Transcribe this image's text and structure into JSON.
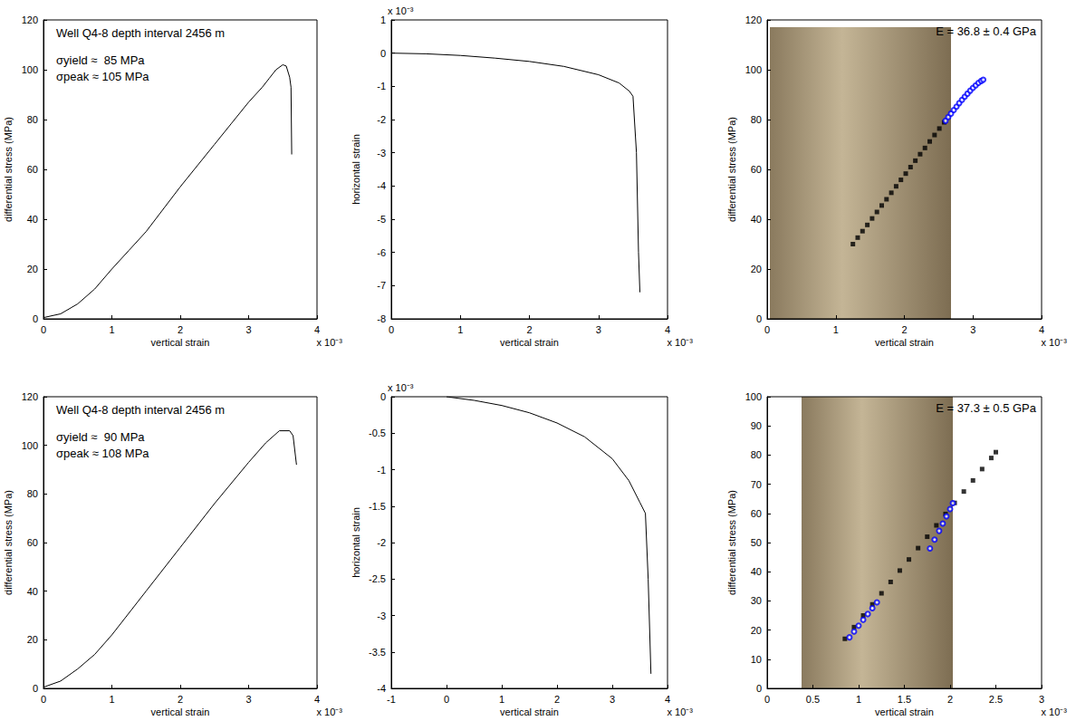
{
  "chart_data": [
    {
      "type": "line",
      "annotations": [
        "Well Q4-8 depth interval 2456 m",
        "σyield ≈  85 MPa",
        "σpeak ≈ 105 MPa"
      ],
      "xlabel": "vertical strain",
      "ylabel": "differential stress (MPa)",
      "x_exponent": "x 10⁻³",
      "x": [
        0,
        0.25,
        0.5,
        0.75,
        1,
        1.25,
        1.5,
        1.75,
        2,
        2.25,
        2.5,
        2.75,
        3,
        3.2,
        3.3,
        3.4,
        3.5,
        3.55,
        3.6,
        3.62,
        3.63
      ],
      "values": [
        0.5,
        2,
        6,
        12,
        20,
        27.5,
        35,
        44,
        53,
        61.5,
        70,
        78.5,
        87,
        93,
        96.5,
        100,
        102,
        101.5,
        97,
        93,
        66
      ],
      "color": "#000000",
      "xlim": [
        0,
        4
      ],
      "xticks": [
        0,
        1,
        2,
        3,
        4
      ],
      "ylim": [
        0,
        120
      ],
      "yticks": [
        0,
        20,
        40,
        60,
        80,
        100,
        120
      ]
    },
    {
      "type": "line",
      "xlabel": "vertical strain",
      "ylabel": "horizontal strain",
      "x_exponent": "x 10⁻³",
      "y_exponent": "x 10⁻³",
      "x": [
        0,
        0.5,
        1,
        1.5,
        2,
        2.5,
        3,
        3.3,
        3.45,
        3.5,
        3.55,
        3.58,
        3.6
      ],
      "values": [
        0,
        -0.02,
        -0.07,
        -0.15,
        -0.25,
        -0.4,
        -0.65,
        -0.9,
        -1.15,
        -1.3,
        -3,
        -6,
        -7.2
      ],
      "color": "#000000",
      "xlim": [
        0,
        4
      ],
      "xticks": [
        0,
        1,
        2,
        3,
        4
      ],
      "ylim": [
        -8,
        1
      ],
      "yticks": [
        -8,
        -7,
        -6,
        -5,
        -4,
        -3,
        -2,
        -1,
        0,
        1
      ]
    },
    {
      "type": "scatter",
      "title": "E = 36.8 ± 0.4 GPa",
      "xlabel": "vertical strain",
      "ylabel": "differential stress (MPa)",
      "x_exponent": "x 10⁻³",
      "series": [
        {
          "marker": "square",
          "color": "#000000",
          "x": [
            1.25,
            1.32,
            1.39,
            1.46,
            1.53,
            1.6,
            1.67,
            1.74,
            1.81,
            1.88,
            1.95,
            2.02,
            2.09,
            2.16,
            2.23,
            2.3,
            2.37,
            2.44,
            2.51,
            2.58
          ],
          "values": [
            30,
            32.6,
            35.2,
            37.7,
            40.3,
            42.9,
            45.5,
            48,
            50.6,
            53.2,
            55.8,
            58.3,
            60.9,
            63.5,
            66.1,
            68.6,
            71.2,
            73.8,
            76.4,
            78.9
          ]
        },
        {
          "marker": "circle-open",
          "color": "#0000ff",
          "x": [
            2.6,
            2.64,
            2.68,
            2.72,
            2.76,
            2.8,
            2.84,
            2.88,
            2.92,
            2.96,
            3,
            3.04,
            3.08,
            3.12,
            3.15
          ],
          "values": [
            79.5,
            81,
            82.4,
            83.8,
            85.2,
            86.6,
            87.9,
            89.2,
            90.4,
            91.6,
            92.7,
            93.7,
            94.7,
            95.5,
            96
          ]
        }
      ],
      "xlim": [
        0,
        4
      ],
      "xticks": [
        0,
        1,
        2,
        3,
        4
      ],
      "ylim": [
        0,
        120
      ],
      "yticks": [
        0,
        20,
        40,
        60,
        80,
        100,
        120
      ]
    },
    {
      "type": "line",
      "annotations": [
        "Well Q4-8 depth interval 2456 m",
        "σyield ≈  90 MPa",
        "σpeak ≈ 108 MPa"
      ],
      "xlabel": "vertical strain",
      "ylabel": "differential stress (MPa)",
      "x_exponent": "x 10⁻³",
      "x": [
        0,
        0.25,
        0.5,
        0.75,
        1,
        1.5,
        2,
        2.5,
        3,
        3.25,
        3.45,
        3.6,
        3.65,
        3.7
      ],
      "values": [
        0.5,
        3,
        8,
        14,
        22,
        40,
        58,
        76,
        93,
        101,
        106,
        106,
        104,
        92
      ],
      "color": "#000000",
      "xlim": [
        0,
        4
      ],
      "xticks": [
        0,
        1,
        2,
        3,
        4
      ],
      "ylim": [
        0,
        120
      ],
      "yticks": [
        0,
        20,
        40,
        60,
        80,
        100,
        120
      ]
    },
    {
      "type": "line",
      "xlabel": "vertical strain",
      "ylabel": "horizontal strain",
      "x_exponent": "x 10⁻³",
      "y_exponent": "x 10⁻³",
      "x": [
        0,
        0.5,
        1,
        1.5,
        2,
        2.5,
        3,
        3.3,
        3.5,
        3.6,
        3.65,
        3.7
      ],
      "values": [
        0,
        -0.05,
        -0.12,
        -0.22,
        -0.36,
        -0.55,
        -0.85,
        -1.15,
        -1.45,
        -1.6,
        -2.5,
        -3.8
      ],
      "color": "#000000",
      "xlim": [
        -1,
        4
      ],
      "xticks": [
        -1,
        0,
        1,
        2,
        3,
        4
      ],
      "ylim": [
        -4,
        0
      ],
      "yticks": [
        -4,
        -3.5,
        -3,
        -2.5,
        -2,
        -1.5,
        -1,
        -0.5,
        0
      ]
    },
    {
      "type": "scatter",
      "title": "E = 37.3 ± 0.5 GPa",
      "xlabel": "vertical strain",
      "ylabel": "differential stress (MPa)",
      "x_exponent": "x 10⁻³",
      "series": [
        {
          "marker": "square",
          "color": "#000000",
          "x": [
            0.85,
            0.95,
            1.05,
            1.15,
            1.25,
            1.35,
            1.45,
            1.55,
            1.65,
            1.75,
            1.85,
            1.95,
            2.05,
            2.15,
            2.25,
            2.35,
            2.45,
            2.5
          ],
          "values": [
            17,
            21,
            25,
            28.8,
            32.6,
            36.5,
            40.4,
            44.2,
            48.1,
            52,
            55.9,
            59.8,
            63.6,
            67.5,
            71.3,
            75.2,
            79,
            81
          ]
        },
        {
          "marker": "circle-open",
          "color": "#0000ff",
          "x": [
            0.9,
            0.95,
            1,
            1.05,
            1.1,
            1.15,
            1.2,
            1.78,
            1.83,
            1.88,
            1.92,
            1.96,
            2,
            2.03
          ],
          "values": [
            17.5,
            19.5,
            21.5,
            23.5,
            25.5,
            27.5,
            29.5,
            48,
            51,
            54,
            56.5,
            59,
            61.5,
            63.5
          ]
        }
      ],
      "xlim": [
        0,
        3
      ],
      "xticks": [
        0,
        0.5,
        1,
        1.5,
        2,
        2.5,
        3
      ],
      "ylim": [
        0,
        100
      ],
      "yticks": [
        0,
        10,
        20,
        30,
        40,
        50,
        60,
        70,
        80,
        90,
        100
      ]
    }
  ]
}
